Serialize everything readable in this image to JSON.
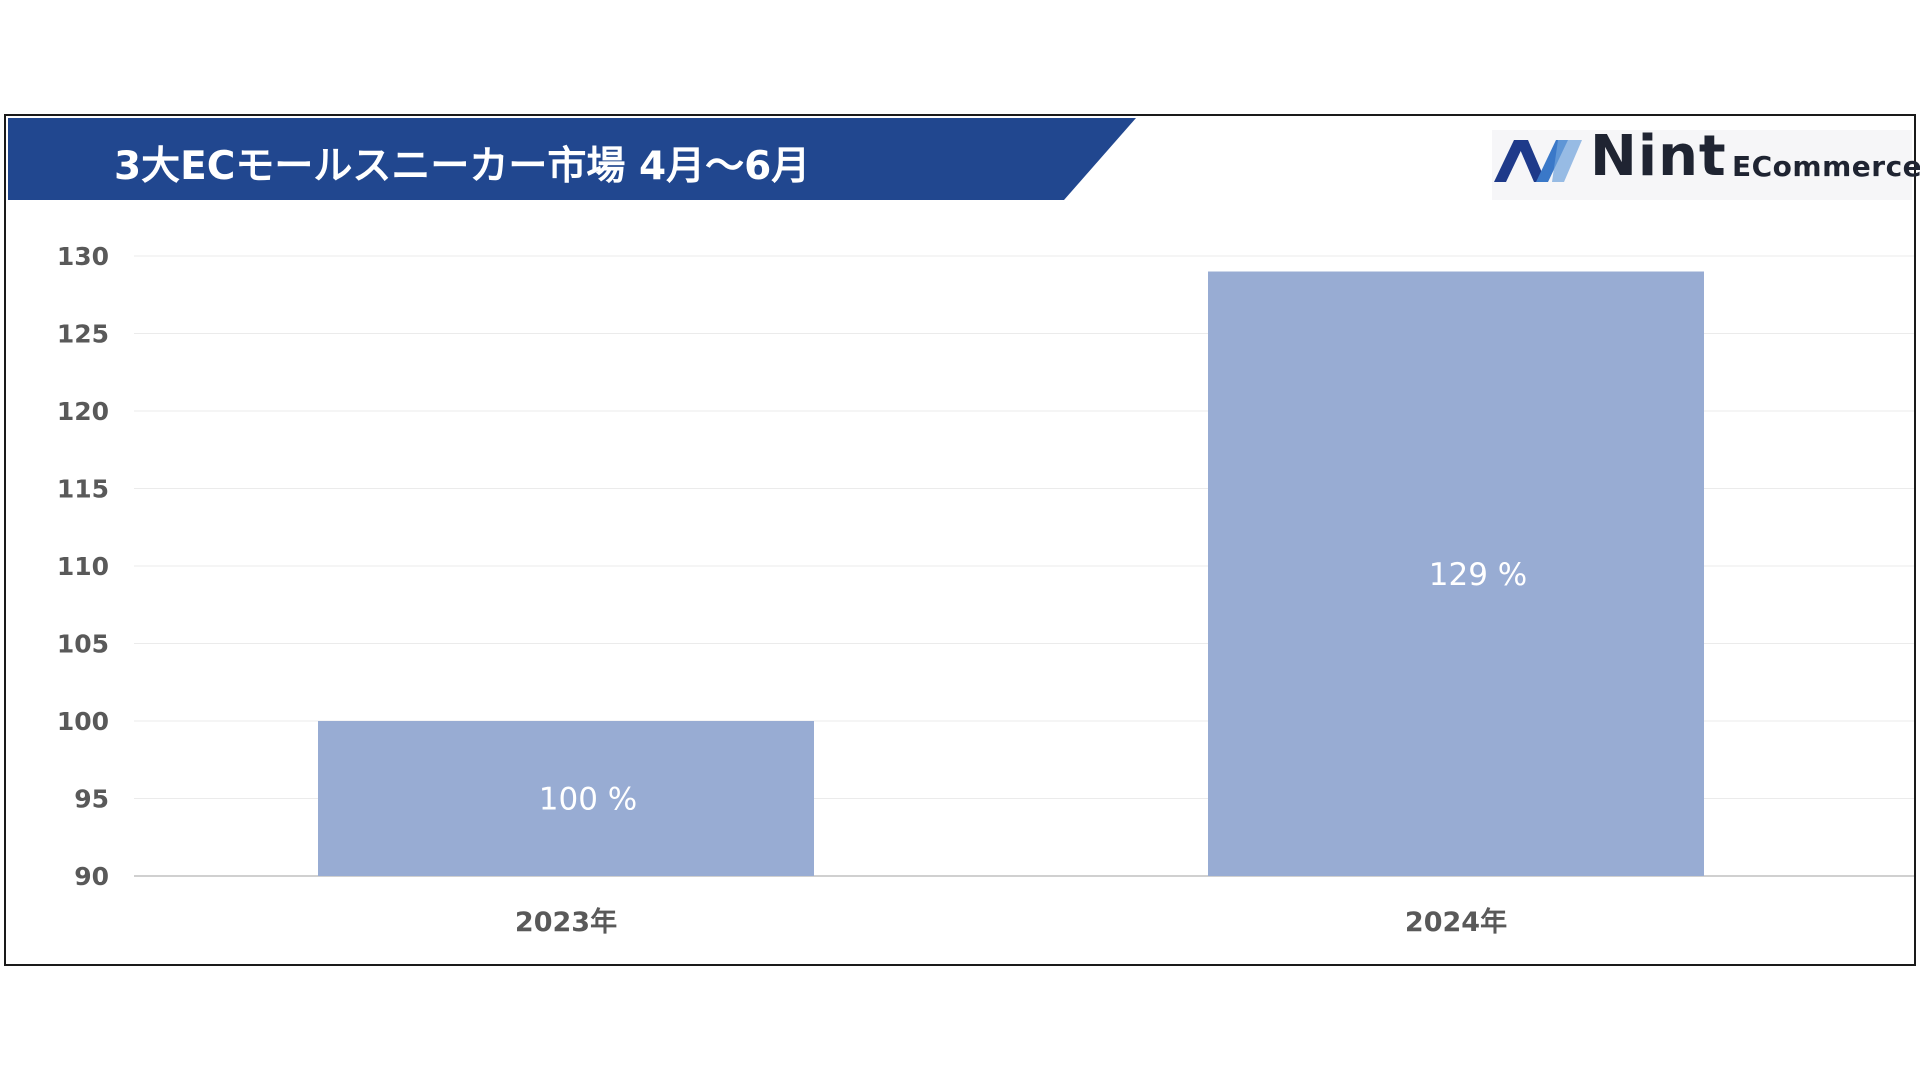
{
  "chart_data": {
    "type": "bar",
    "title": "3大ECモールスニーカー市場 4月〜6月",
    "categories": [
      "2023年",
      "2024年"
    ],
    "values": [
      100,
      129
    ],
    "data_labels": [
      "100 %",
      "129 %"
    ],
    "ylim": [
      90,
      130
    ],
    "yticks": [
      90,
      95,
      100,
      105,
      110,
      115,
      120,
      125,
      130
    ],
    "xlabel": "",
    "ylabel": "",
    "grid": true,
    "bar_color": "#98acd3"
  },
  "brand": {
    "name": "Nint",
    "sub": "ECommerce",
    "colors": {
      "dark_blue": "#1e3a8a",
      "light_blue": "#3a78c8",
      "text": "#1f2432"
    }
  },
  "banner_color": "#21478f"
}
